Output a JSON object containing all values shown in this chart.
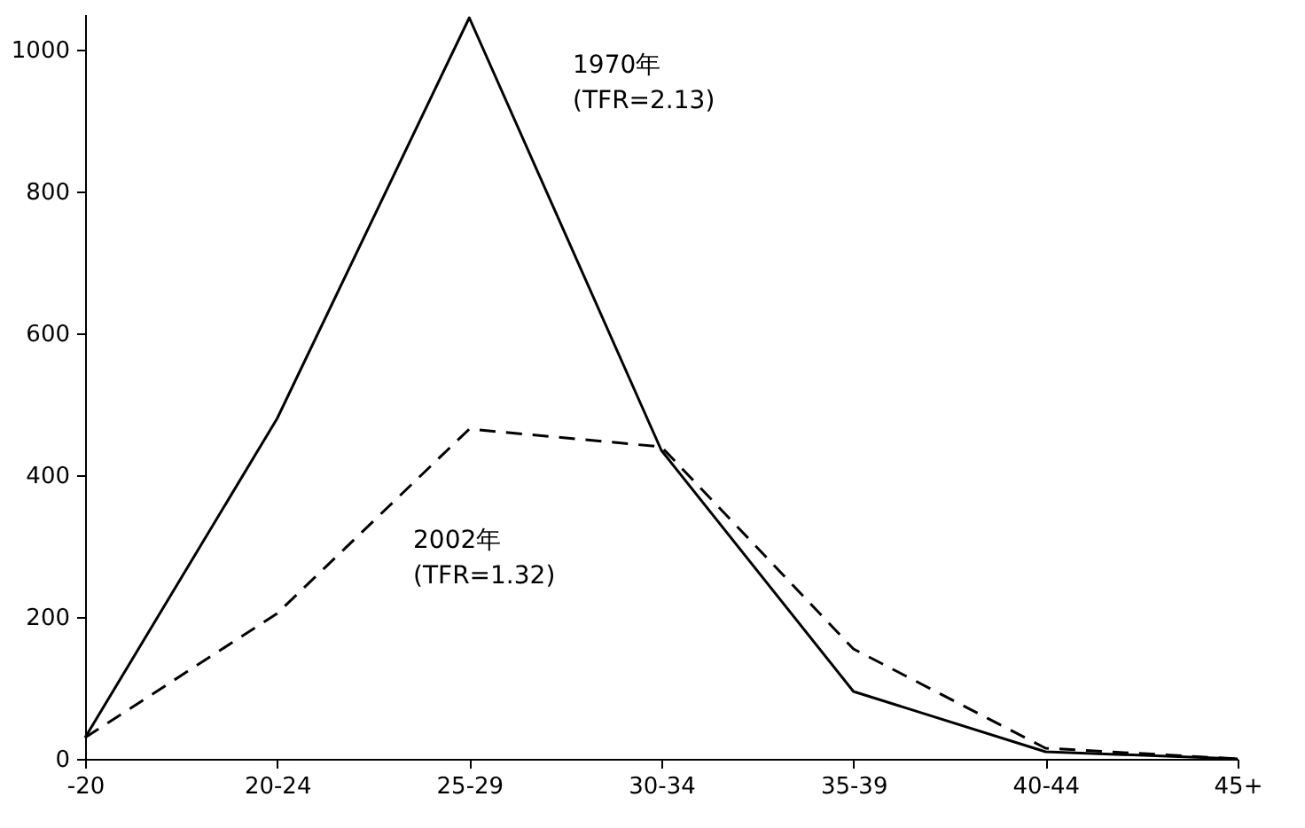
{
  "chart_data": {
    "type": "line",
    "categories": [
      "-20",
      "20-24",
      "25-29",
      "30-34",
      "35-39",
      "40-44",
      "45+"
    ],
    "series": [
      {
        "name": "1970年",
        "color": "#000000",
        "line_style": "solid",
        "values": [
          30,
          480,
          1045,
          435,
          95,
          10,
          0
        ]
      },
      {
        "name": "2002年",
        "color": "#000000",
        "line_style": "dashed",
        "values": [
          30,
          205,
          465,
          440,
          155,
          15,
          0
        ]
      }
    ],
    "annotations": [
      "(TFR=2.13)",
      "(TFR=1.32)"
    ],
    "ylim": [
      0,
      1050
    ],
    "yticks": [
      0,
      200,
      400,
      600,
      800,
      1000
    ],
    "grid": false,
    "marker": "none"
  }
}
